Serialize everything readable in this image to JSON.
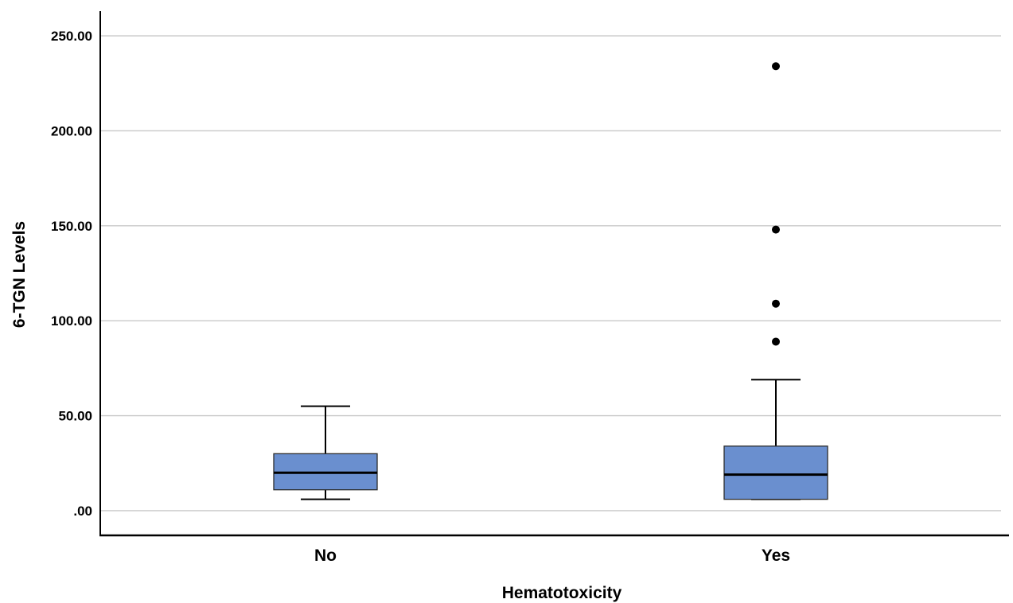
{
  "chart_data": {
    "type": "box",
    "xlabel": "Hematotoxicity",
    "ylabel": "6-TGN Levels",
    "ylim": [
      -13,
      263
    ],
    "yticks": [
      0,
      50,
      100,
      150,
      200,
      250
    ],
    "ytick_labels": [
      ".00",
      "50.00",
      "100.00",
      "150.00",
      "200.00",
      "250.00"
    ],
    "grid": true,
    "box_color": "#6a8fcf",
    "categories": [
      "No",
      "Yes"
    ],
    "boxes": [
      {
        "category": "No",
        "whisker_low": 6,
        "q1": 11,
        "median": 20,
        "q3": 30,
        "whisker_high": 55,
        "outliers": []
      },
      {
        "category": "Yes",
        "whisker_low": 6,
        "q1": 6,
        "median": 19,
        "q3": 34,
        "whisker_high": 69,
        "outliers": [
          89,
          109,
          148,
          234
        ]
      }
    ]
  }
}
